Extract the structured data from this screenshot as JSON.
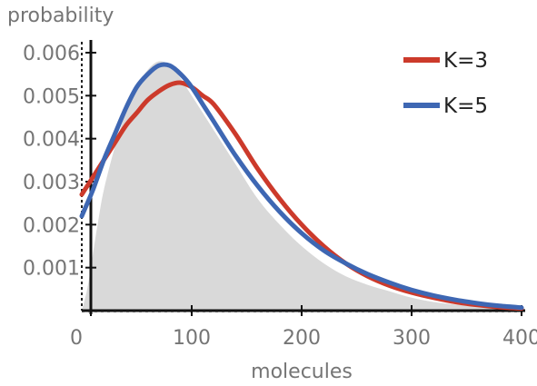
{
  "chart_data": {
    "type": "area",
    "title": "",
    "xlabel": "molecules",
    "ylabel": "probability",
    "xlim": [
      0,
      400
    ],
    "ylim": [
      0,
      0.006
    ],
    "xticks": [
      0,
      100,
      200,
      300,
      400
    ],
    "yticks": [
      0.001,
      0.002,
      0.003,
      0.004,
      0.005,
      0.006
    ],
    "xtick_labels": [
      "0",
      "100",
      "200",
      "300",
      "400"
    ],
    "ytick_labels": [
      "0.001",
      "0.002",
      "0.003",
      "0.004",
      "0.005",
      "0.006"
    ],
    "legend_position": "top-right",
    "grid": false,
    "histogram": {
      "color": "#d9d9d9",
      "x": [
        0,
        5,
        10,
        15,
        20,
        30,
        40,
        50,
        60,
        70,
        80,
        90,
        100,
        120,
        140,
        160,
        180,
        200,
        220,
        240,
        260,
        280,
        300,
        320,
        340,
        360,
        380,
        400
      ],
      "y": [
        0,
        0.0005,
        0.0013,
        0.0021,
        0.0028,
        0.0038,
        0.0046,
        0.0052,
        0.0056,
        0.0058,
        0.0057,
        0.0054,
        0.005,
        0.0042,
        0.0034,
        0.0026,
        0.002,
        0.0015,
        0.0011,
        0.0008,
        0.0006,
        0.00045,
        0.0003,
        0.0002,
        0.00014,
        0.0001,
        7e-05,
        5e-05
      ]
    },
    "series": [
      {
        "name": "K=3",
        "color": "#cc3a2b",
        "x": [
          0,
          10,
          20,
          30,
          40,
          50,
          60,
          70,
          80,
          90,
          100,
          110,
          120,
          140,
          160,
          180,
          200,
          220,
          240,
          260,
          280,
          300,
          320,
          340,
          360,
          380,
          400
        ],
        "y": [
          0.0027,
          0.0031,
          0.0035,
          0.0039,
          0.0043,
          0.0046,
          0.0049,
          0.0051,
          0.00525,
          0.0053,
          0.0052,
          0.005,
          0.0048,
          0.0041,
          0.0033,
          0.0026,
          0.002,
          0.0015,
          0.0011,
          0.0008,
          0.00058,
          0.00042,
          0.0003,
          0.0002,
          0.00013,
          8e-05,
          5e-05
        ]
      },
      {
        "name": "K=5",
        "color": "#3e67b3",
        "x": [
          0,
          10,
          20,
          30,
          40,
          50,
          60,
          70,
          80,
          90,
          100,
          110,
          120,
          140,
          160,
          180,
          200,
          220,
          240,
          260,
          280,
          300,
          320,
          340,
          360,
          380,
          400
        ],
        "y": [
          0.0022,
          0.0028,
          0.0035,
          0.0041,
          0.0047,
          0.0052,
          0.0055,
          0.0057,
          0.0057,
          0.0055,
          0.0052,
          0.0048,
          0.0044,
          0.0036,
          0.0029,
          0.0023,
          0.0018,
          0.0014,
          0.0011,
          0.00085,
          0.00065,
          0.00048,
          0.00035,
          0.00025,
          0.00017,
          0.00011,
          7e-05
        ]
      }
    ]
  }
}
